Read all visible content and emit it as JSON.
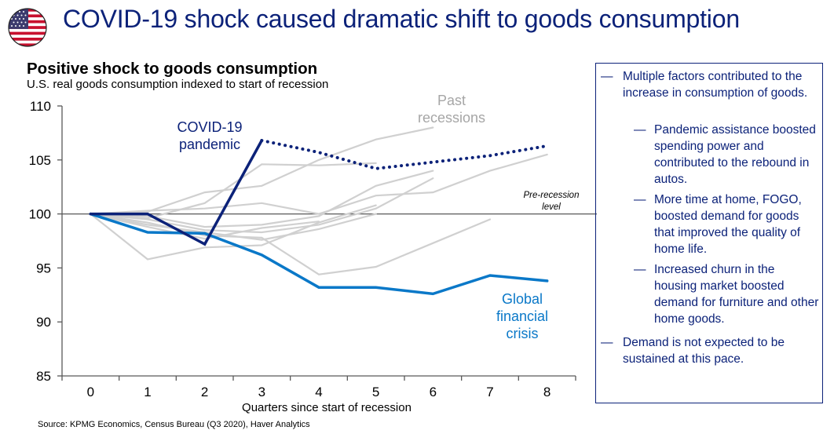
{
  "header": {
    "title": "COVID-19 shock caused dramatic shift to goods consumption",
    "flag_icon": "us-flag-icon"
  },
  "chart_data": {
    "type": "line",
    "title": "Positive shock to goods consumption",
    "subtitle": "U.S. real goods consumption indexed to start of recession",
    "xlabel": "Quarters since start of recession",
    "ylabel": "",
    "x": [
      0,
      1,
      2,
      3,
      4,
      5,
      6,
      7,
      8
    ],
    "x_tick_labels": [
      "0",
      "1",
      "2",
      "3",
      "4",
      "5",
      "6",
      "7",
      "8"
    ],
    "ylim": [
      85,
      110
    ],
    "y_ticks": [
      85,
      90,
      95,
      100,
      105,
      110
    ],
    "y_tick_labels": [
      "85",
      "90",
      "95",
      "100",
      "105",
      "110"
    ],
    "grid": false,
    "reference_line": {
      "value": 100,
      "label": "Pre-recession level"
    },
    "series": [
      {
        "name": "Past recession 1",
        "group": "Past recessions",
        "color": "#d0d0d0",
        "style": "solid",
        "values": [
          100,
          99.6,
          101.0,
          104.6,
          104.5,
          104.7
        ]
      },
      {
        "name": "Past recession 2",
        "group": "Past recessions",
        "color": "#d0d0d0",
        "style": "solid",
        "values": [
          100,
          100.2,
          102.0,
          102.6,
          105.0,
          106.9,
          108.0
        ]
      },
      {
        "name": "Past recession 3",
        "group": "Past recessions",
        "color": "#d0d0d0",
        "style": "solid",
        "values": [
          100,
          100.3,
          100.5,
          101.0,
          100.0,
          101.7,
          102.0,
          104.0,
          105.5
        ]
      },
      {
        "name": "Past recession 4",
        "group": "Past recessions",
        "color": "#d0d0d0",
        "style": "solid",
        "values": [
          100,
          99.8,
          98.8,
          99.0,
          99.8,
          102.6,
          104.0
        ]
      },
      {
        "name": "Past recession 5",
        "group": "Past recessions",
        "color": "#d0d0d0",
        "style": "solid",
        "values": [
          100,
          95.8,
          96.9,
          97.1,
          99.2,
          100.8
        ]
      },
      {
        "name": "Past recession 6",
        "group": "Past recessions",
        "color": "#d0d0d0",
        "style": "solid",
        "values": [
          100,
          99.5,
          98.5,
          98.3,
          99.0,
          100.5,
          103.3
        ]
      },
      {
        "name": "Past recession 7",
        "group": "Past recessions",
        "color": "#d0d0d0",
        "style": "solid",
        "values": [
          100,
          99.2,
          98.0,
          97.8,
          94.4,
          95.1,
          97.3,
          99.5
        ]
      },
      {
        "name": "Past recession 8",
        "group": "Past recessions",
        "color": "#d0d0d0",
        "style": "solid",
        "values": [
          100,
          99.0,
          98.3,
          97.6,
          98.6,
          100.0
        ]
      },
      {
        "name": "Past recession 9",
        "group": "Past recessions",
        "color": "#d0d0d0",
        "style": "solid",
        "values": [
          100,
          98.8,
          97.7,
          98.7,
          99.3
        ]
      },
      {
        "name": "Global financial crisis",
        "color": "#0a78c8",
        "style": "solid",
        "values": [
          100,
          98.3,
          98.2,
          96.2,
          93.2,
          93.2,
          92.6,
          94.3,
          93.8
        ]
      },
      {
        "name": "COVID-19 pandemic",
        "color": "#0c2279",
        "style": "solid",
        "values": [
          100,
          100.0,
          97.2,
          106.8
        ]
      },
      {
        "name": "COVID-19 pandemic (forecast)",
        "color": "#0c2279",
        "style": "dotted",
        "x_start": 3,
        "values": [
          106.8,
          105.7,
          104.2,
          104.8,
          105.4,
          106.3
        ]
      }
    ],
    "annotations": [
      {
        "text": "COVID-19 pandemic",
        "lines": [
          "COVID-19",
          "pandemic"
        ],
        "color": "#0c2279"
      },
      {
        "text": "Past recessions",
        "lines": [
          "Past",
          "recessions"
        ],
        "color": "#a6a6a6"
      },
      {
        "text": "Global financial crisis",
        "lines": [
          "Global",
          "financial",
          "crisis"
        ],
        "color": "#0a78c8"
      },
      {
        "text": "Pre-recession level",
        "lines": [
          "Pre-recession",
          "level"
        ],
        "color": "#000000"
      }
    ]
  },
  "notes": {
    "dash": "—",
    "items": [
      {
        "level": 1,
        "text": "Multiple factors contributed to the increase in consumption of goods."
      },
      {
        "level": 2,
        "text": "Pandemic assistance boosted spending power and contributed to the rebound in autos."
      },
      {
        "level": 2,
        "text": "More time at home, FOGO, boosted demand for goods that improved the quality of home life."
      },
      {
        "level": 2,
        "text": "Increased churn in the housing market boosted demand for furniture and other home goods."
      },
      {
        "level": 1,
        "text": "Demand is not expected to be sustained at this pace."
      }
    ]
  },
  "footer": {
    "source": "Source: KPMG Economics, Census Bureau (Q3 2020), Haver Analytics"
  },
  "colors": {
    "brand_navy": "#0c2279",
    "gfc_blue": "#0a78c8",
    "past_gray": "#d0d0d0",
    "axis": "#595959"
  }
}
